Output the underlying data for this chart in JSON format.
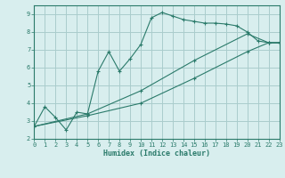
{
  "xlabel": "Humidex (Indice chaleur)",
  "bg_color": "#d8eeee",
  "grid_color": "#aacccc",
  "line_color": "#2a7a6a",
  "xlim": [
    0,
    23
  ],
  "ylim": [
    2,
    9.5
  ],
  "xticks": [
    0,
    1,
    2,
    3,
    4,
    5,
    6,
    7,
    8,
    9,
    10,
    11,
    12,
    13,
    14,
    15,
    16,
    17,
    18,
    19,
    20,
    21,
    22,
    23
  ],
  "yticks": [
    2,
    3,
    4,
    5,
    6,
    7,
    8,
    9
  ],
  "curve1_x": [
    0,
    1,
    2,
    3,
    4,
    5,
    6,
    7,
    8,
    9,
    10,
    11,
    12,
    13,
    14,
    15,
    16,
    17,
    18,
    19,
    20,
    21,
    22,
    23
  ],
  "curve1_y": [
    2.7,
    3.8,
    3.2,
    2.5,
    3.5,
    3.4,
    5.8,
    6.9,
    5.8,
    6.5,
    7.3,
    8.8,
    9.1,
    8.9,
    8.7,
    8.6,
    8.5,
    8.5,
    8.45,
    8.35,
    8.0,
    7.5,
    7.4,
    7.4
  ],
  "curve2_x": [
    0,
    5,
    10,
    15,
    20,
    22,
    23
  ],
  "curve2_y": [
    2.7,
    3.4,
    4.7,
    6.4,
    7.9,
    7.4,
    7.4
  ],
  "curve3_x": [
    0,
    5,
    10,
    15,
    20,
    22,
    23
  ],
  "curve3_y": [
    2.7,
    3.3,
    4.0,
    5.4,
    6.9,
    7.4,
    7.4
  ]
}
